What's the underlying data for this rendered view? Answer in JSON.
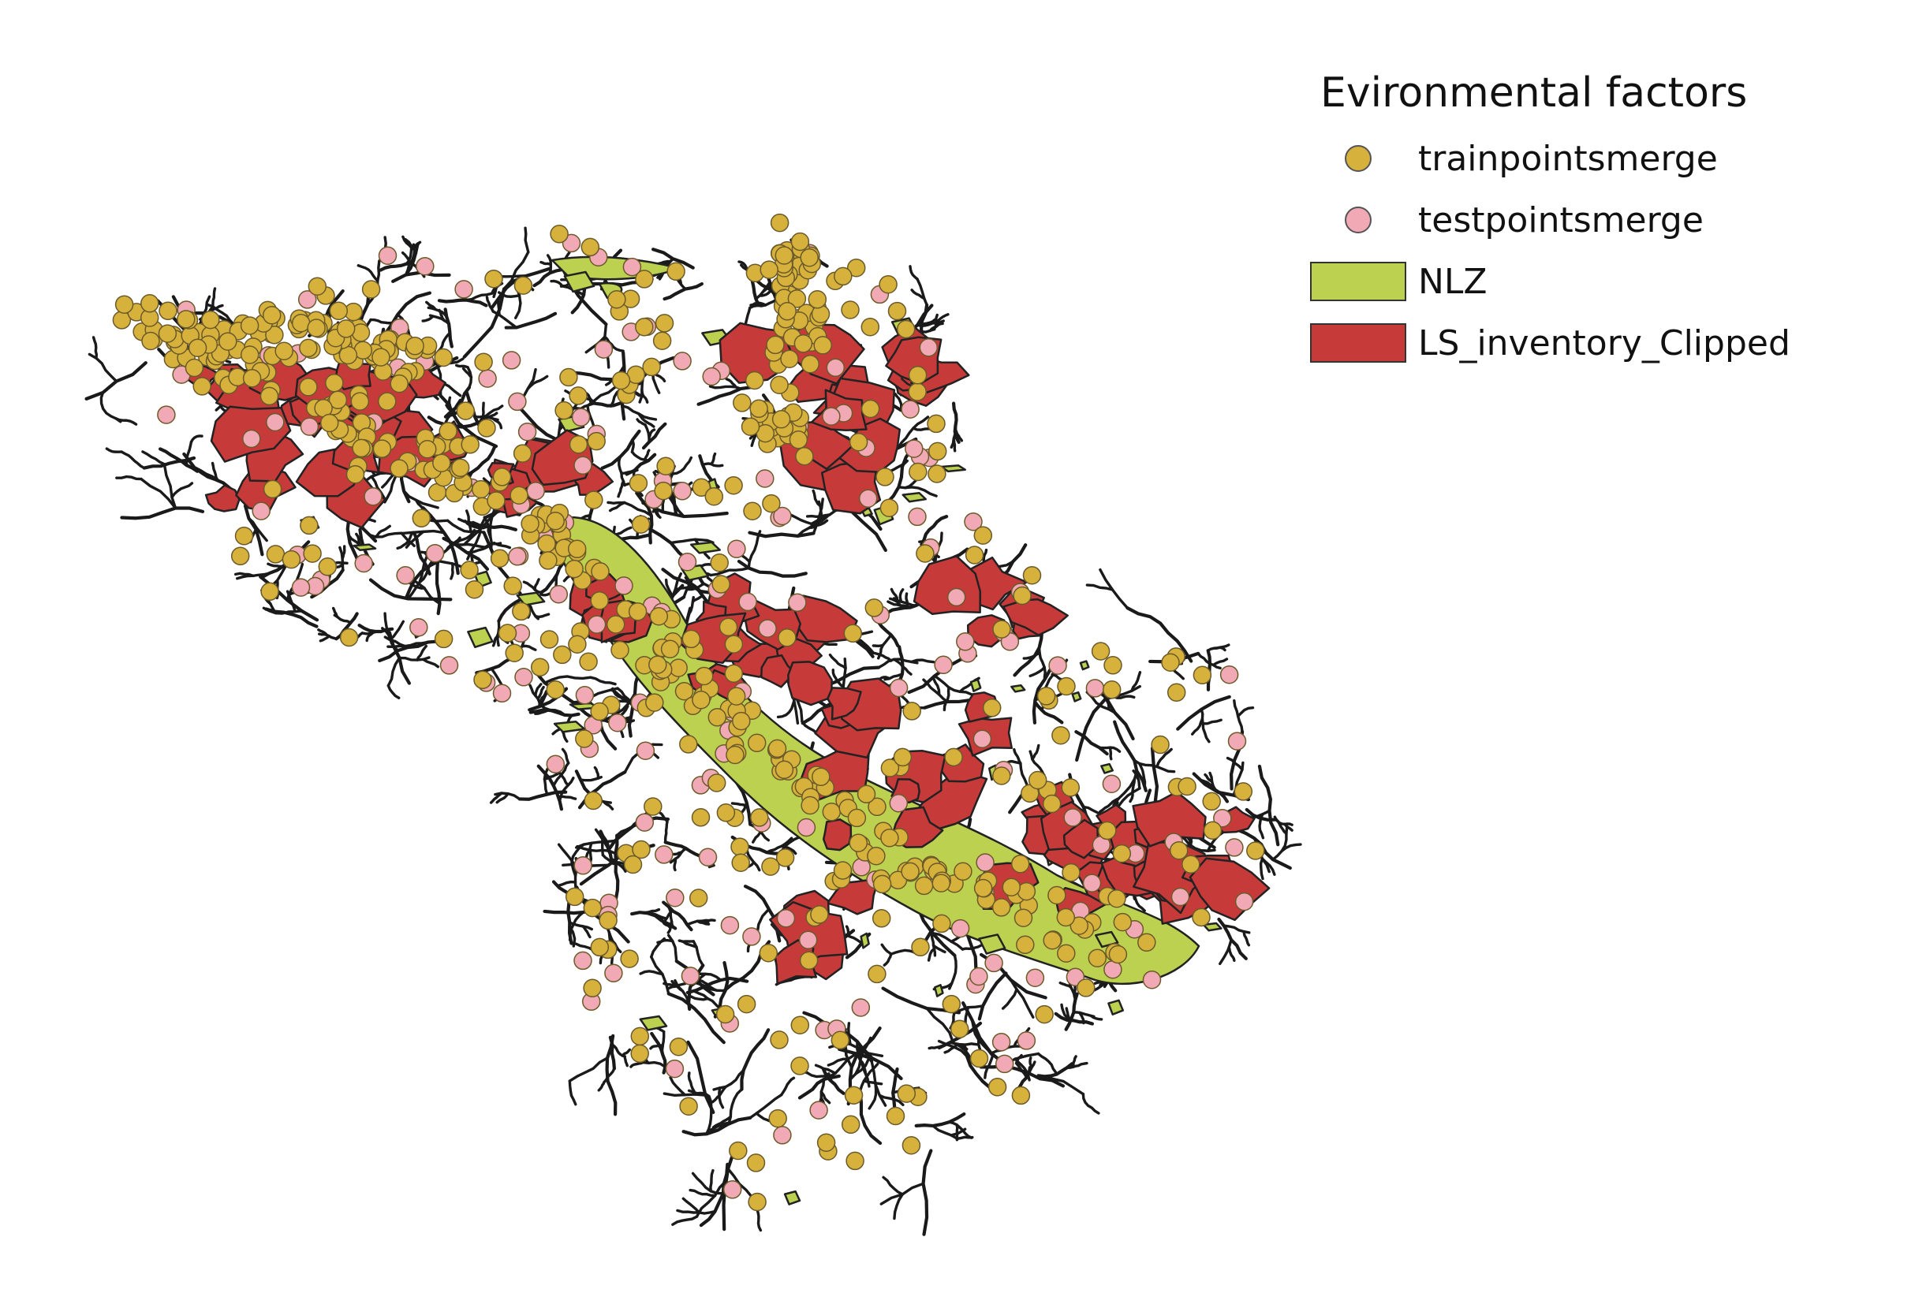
{
  "legend": {
    "title": "Evironmental factors",
    "items": [
      {
        "label": "trainpointsmerge",
        "kind": "point",
        "color": "#d6b13c"
      },
      {
        "label": "testpointsmerge",
        "kind": "point",
        "color": "#f2a9b6"
      },
      {
        "label": "NLZ",
        "kind": "polygon",
        "color": "#bcd150"
      },
      {
        "label": "LS_inventory_Clipped",
        "kind": "polygon",
        "color": "#c63a3a"
      }
    ]
  },
  "colors": {
    "drainage": "#1a1a1a",
    "outline": "#222222",
    "background": "#ffffff"
  }
}
